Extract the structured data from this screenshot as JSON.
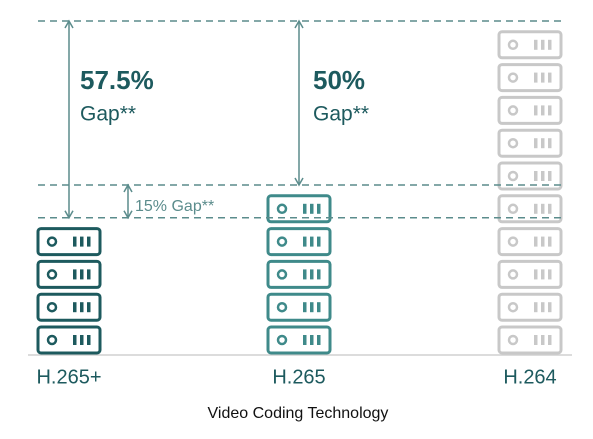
{
  "chart_data": {
    "type": "pictogram",
    "categories": [
      "H.265+",
      "H.265",
      "H.264"
    ],
    "values": [
      4,
      5,
      10
    ],
    "colors": [
      "#1d5a5e",
      "#3f8a8a",
      "#c8c8c8"
    ],
    "x_label": "Video Coding Technology",
    "annotations": [
      {
        "text": "57.5%",
        "sub": "Gap**"
      },
      {
        "text": "50%",
        "sub": "Gap**"
      },
      {
        "text": "15% Gap**"
      }
    ]
  }
}
